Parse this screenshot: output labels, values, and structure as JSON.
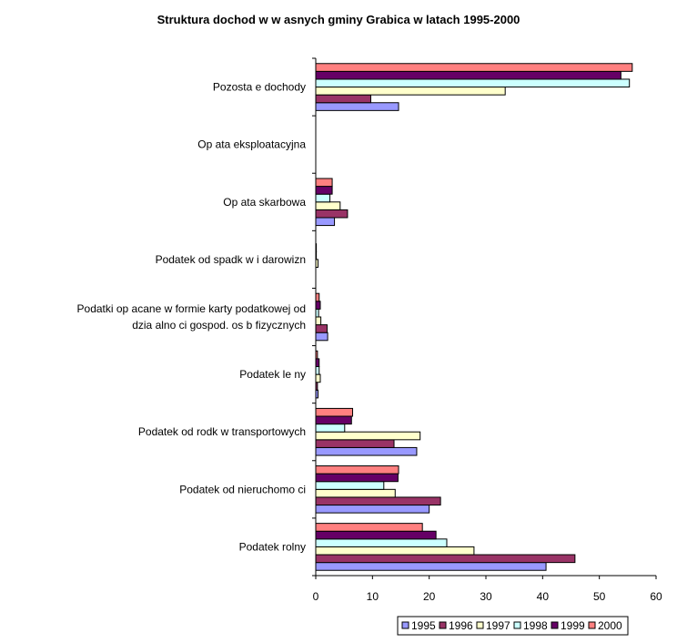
{
  "chart_data": {
    "type": "bar",
    "orientation": "horizontal",
    "title": "Struktura dochod  w w asnych gminy Grabica w latach 1995-2000",
    "xlabel": "",
    "ylabel": "",
    "xlim": [
      0,
      60
    ],
    "xticks": [
      "0",
      "10",
      "20",
      "30",
      "40",
      "50",
      "60"
    ],
    "grid": false,
    "legend_position": "bottom-right",
    "categories": [
      [
        "Podatek rolny"
      ],
      [
        "Podatek od nieruchomo  ci"
      ],
      [
        "Podatek od   rodk  w transportowych"
      ],
      [
        "Podatek le  ny"
      ],
      [
        "Podatki op acane w formie karty podatkowej od",
        "dzia alno  ci gospod. os  b fizycznych"
      ],
      [
        "Podatek od spadk  w i darowizn"
      ],
      [
        "Op ata skarbowa"
      ],
      [
        "Op ata eksploatacyjna"
      ],
      [
        "Pozosta e dochody"
      ]
    ],
    "series": [
      {
        "name": "1995",
        "color": "#9999ff",
        "values": [
          40.6,
          20.0,
          17.8,
          0.4,
          2.1,
          0.0,
          3.3,
          0.0,
          14.6
        ]
      },
      {
        "name": "1996",
        "color": "#993366",
        "values": [
          45.7,
          22.0,
          13.8,
          0.3,
          2.0,
          0.0,
          5.6,
          0.0,
          9.7
        ]
      },
      {
        "name": "1997",
        "color": "#ffffcc",
        "values": [
          27.9,
          14.0,
          18.4,
          0.8,
          0.9,
          0.4,
          4.3,
          0.0,
          33.4
        ]
      },
      {
        "name": "1998",
        "color": "#ccffff",
        "values": [
          23.1,
          12.0,
          5.1,
          0.6,
          0.5,
          0.1,
          2.5,
          0.0,
          55.3
        ]
      },
      {
        "name": "1999",
        "color": "#660066",
        "values": [
          21.2,
          14.5,
          6.3,
          0.6,
          0.8,
          0.1,
          2.9,
          0.0,
          53.8
        ]
      },
      {
        "name": "2000",
        "color": "#ff8080",
        "values": [
          18.8,
          14.6,
          6.5,
          0.3,
          0.6,
          0.0,
          2.9,
          0.0,
          55.8
        ]
      }
    ]
  }
}
